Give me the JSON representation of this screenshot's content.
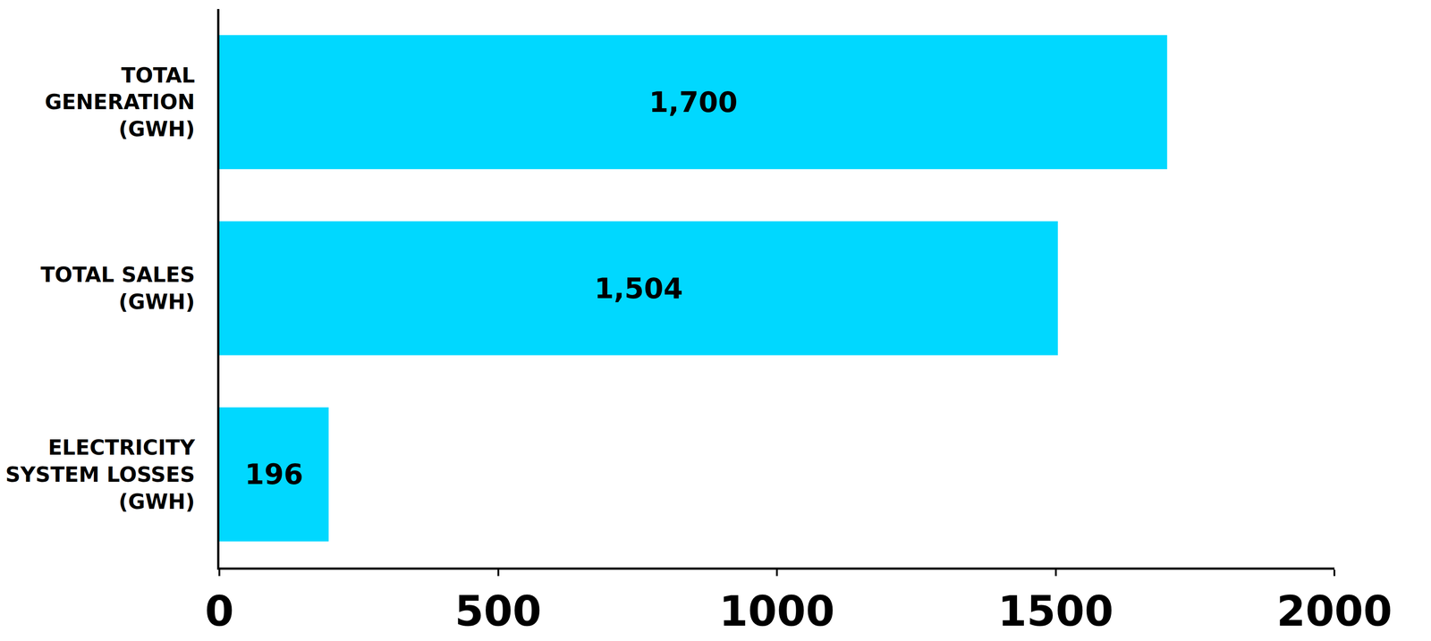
{
  "chart_data": {
    "type": "bar",
    "orientation": "horizontal",
    "categories": [
      "TOTAL GENERATION (GWH)",
      "TOTAL SALES (GWH)",
      "ELECTRICITY SYSTEM LOSSES (GWH)"
    ],
    "values": [
      1700,
      1504,
      196
    ],
    "value_labels": [
      "1,700",
      "1,504",
      "196"
    ],
    "data_labels": true,
    "color": "#00d8ff",
    "xlim": [
      0,
      2000
    ],
    "xticks": [
      0,
      500,
      1000,
      1500,
      2000
    ],
    "grid": false
  }
}
